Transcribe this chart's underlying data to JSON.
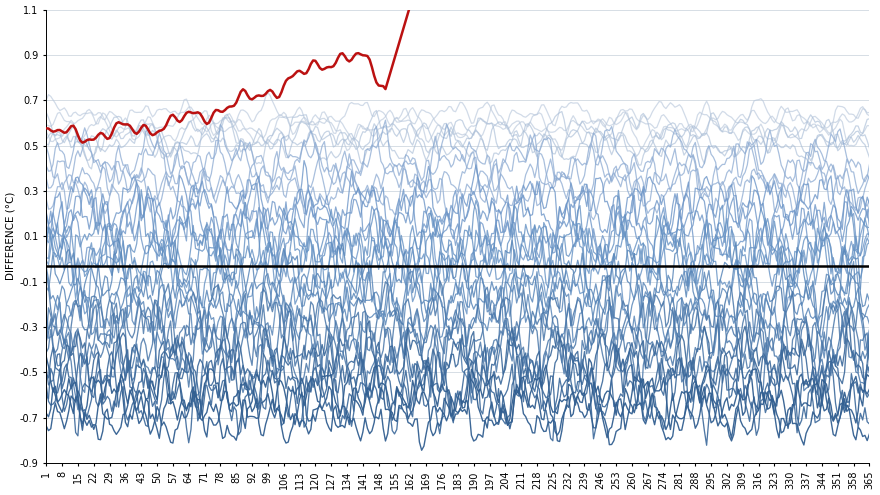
{
  "title": "",
  "ylabel": "DIFFERENCE (°C)",
  "ylim": [
    -0.9,
    1.1
  ],
  "yticks": [
    -0.9,
    -0.7,
    -0.5,
    -0.3,
    -0.1,
    0.1,
    0.3,
    0.5,
    0.7,
    0.9,
    1.1
  ],
  "xtick_values": [
    1,
    8,
    15,
    22,
    29,
    36,
    43,
    50,
    57,
    64,
    71,
    78,
    85,
    92,
    99,
    106,
    113,
    120,
    127,
    134,
    141,
    148,
    155,
    162,
    169,
    176,
    183,
    190,
    197,
    204,
    211,
    218,
    225,
    232,
    239,
    246,
    253,
    260,
    267,
    274,
    281,
    288,
    295,
    302,
    309,
    316,
    323,
    330,
    337,
    344,
    351,
    358,
    365
  ],
  "n_days": 365,
  "red_line_end_day": 162,
  "black_line_y": -0.03,
  "background_color": "#ffffff",
  "grid_color": "#d0d8e0",
  "red_color": "#bb1111",
  "black_line_color": "#000000",
  "seed": 42,
  "line_groups": [
    {
      "count": 3,
      "base_values": [
        0.58,
        0.6,
        0.63
      ],
      "amplitude": 0.07,
      "freq_scale": 1.0,
      "r": 185,
      "g": 200,
      "b": 220,
      "alpha": 0.65,
      "lw": 0.9
    },
    {
      "count": 3,
      "base_values": [
        0.5,
        0.53,
        0.56
      ],
      "amplitude": 0.09,
      "freq_scale": 1.2,
      "r": 170,
      "g": 190,
      "b": 215,
      "alpha": 0.65,
      "lw": 0.9
    },
    {
      "count": 4,
      "base_values": [
        0.3,
        0.35,
        0.4,
        0.45
      ],
      "amplitude": 0.12,
      "freq_scale": 1.5,
      "r": 140,
      "g": 170,
      "b": 210,
      "alpha": 0.75,
      "lw": 0.9
    },
    {
      "count": 4,
      "base_values": [
        0.1,
        0.15,
        0.2,
        0.25
      ],
      "amplitude": 0.15,
      "freq_scale": 1.8,
      "r": 110,
      "g": 150,
      "b": 200,
      "alpha": 0.8,
      "lw": 0.9
    },
    {
      "count": 4,
      "base_values": [
        -0.05,
        0.0,
        0.03,
        0.07
      ],
      "amplitude": 0.15,
      "freq_scale": 2.0,
      "r": 100,
      "g": 145,
      "b": 195,
      "alpha": 0.8,
      "lw": 0.9
    },
    {
      "count": 4,
      "base_values": [
        -0.1,
        -0.15,
        -0.2,
        -0.25
      ],
      "amplitude": 0.15,
      "freq_scale": 2.0,
      "r": 90,
      "g": 135,
      "b": 185,
      "alpha": 0.85,
      "lw": 0.9
    },
    {
      "count": 4,
      "base_values": [
        -0.28,
        -0.33,
        -0.38,
        -0.43
      ],
      "amplitude": 0.16,
      "freq_scale": 2.0,
      "r": 75,
      "g": 120,
      "b": 170,
      "alpha": 0.85,
      "lw": 0.95
    },
    {
      "count": 4,
      "base_values": [
        -0.45,
        -0.5,
        -0.55,
        -0.6
      ],
      "amplitude": 0.16,
      "freq_scale": 2.0,
      "r": 60,
      "g": 105,
      "b": 155,
      "alpha": 0.9,
      "lw": 0.95
    },
    {
      "count": 3,
      "base_values": [
        -0.6,
        -0.65,
        -0.7
      ],
      "amplitude": 0.12,
      "freq_scale": 1.8,
      "r": 50,
      "g": 95,
      "b": 145,
      "alpha": 0.95,
      "lw": 1.0
    }
  ]
}
